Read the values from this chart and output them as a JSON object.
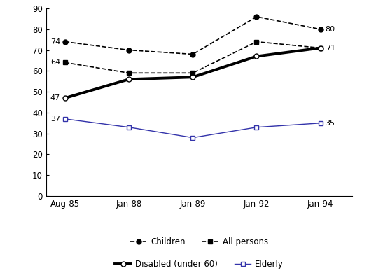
{
  "x_labels": [
    "Aug-85",
    "Jan-88",
    "Jan-89",
    "Jan-92",
    "Jan-94"
  ],
  "x_positions": [
    0,
    1,
    2,
    3,
    4
  ],
  "series": {
    "Children": {
      "values": [
        74,
        70,
        68,
        86,
        80
      ],
      "color": "#000000",
      "linestyle": "--",
      "marker": "o",
      "markerfacecolor": "#000000",
      "linewidth": 1.2,
      "markersize": 5,
      "label_values": [
        74,
        null,
        null,
        null,
        80
      ],
      "label_side": [
        "left",
        null,
        null,
        null,
        "right"
      ]
    },
    "All persons": {
      "values": [
        64,
        59,
        59,
        74,
        71
      ],
      "color": "#000000",
      "linestyle": "--",
      "marker": "s",
      "markerfacecolor": "#000000",
      "linewidth": 1.2,
      "markersize": 5,
      "label_values": [
        64,
        null,
        null,
        null,
        71
      ],
      "label_side": [
        "left",
        null,
        null,
        null,
        "right"
      ]
    },
    "Disabled (under 60)": {
      "values": [
        47,
        56,
        57,
        67,
        71
      ],
      "color": "#000000",
      "linestyle": "-",
      "marker": "o",
      "markerfacecolor": "#ffffff",
      "linewidth": 2.8,
      "markersize": 5,
      "label_values": [
        47,
        null,
        null,
        null,
        null
      ],
      "label_side": [
        "left",
        null,
        null,
        null,
        null
      ]
    },
    "Elderly": {
      "values": [
        37,
        33,
        28,
        33,
        35
      ],
      "color": "#3333aa",
      "linestyle": "-",
      "marker": "s",
      "markerfacecolor": "#ffffff",
      "linewidth": 1.0,
      "markersize": 5,
      "label_values": [
        37,
        null,
        null,
        null,
        35
      ],
      "label_side": [
        "left",
        null,
        null,
        null,
        "right"
      ]
    }
  },
  "ylim": [
    0,
    90
  ],
  "yticks": [
    0,
    10,
    20,
    30,
    40,
    50,
    60,
    70,
    80,
    90
  ],
  "legend_fontsize": 8.5,
  "tick_fontsize": 8.5,
  "annotation_fontsize": 8.0
}
